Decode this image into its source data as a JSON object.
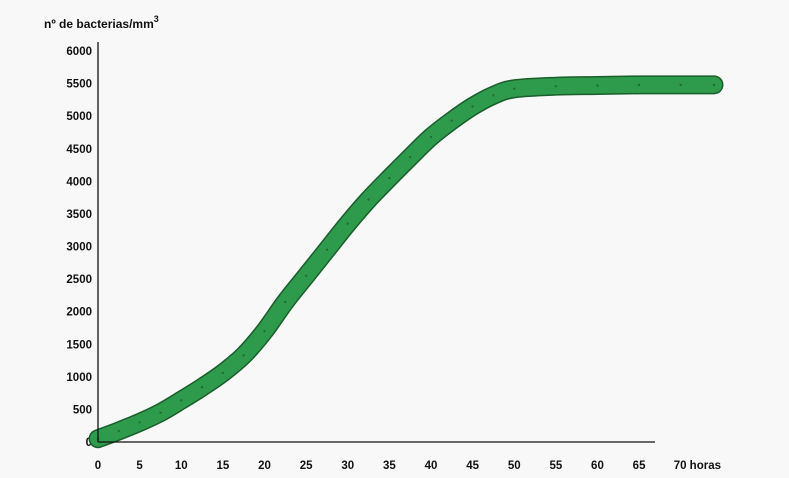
{
  "chart_data": {
    "type": "line",
    "title": "",
    "ylabel": "nº de bacterias/mm",
    "ylabel_superscript": "3",
    "xlabel": "",
    "x_tick_labels": [
      "0",
      "5",
      "10",
      "15",
      "20",
      "25",
      "30",
      "35",
      "40",
      "45",
      "50",
      "55",
      "60",
      "65",
      "70 horas"
    ],
    "x_ticks": [
      0,
      5,
      10,
      15,
      20,
      25,
      30,
      35,
      40,
      45,
      50,
      55,
      60,
      65,
      70
    ],
    "y_ticks": [
      0,
      500,
      1000,
      1500,
      2000,
      2500,
      3000,
      3500,
      4000,
      4500,
      5000,
      5500,
      6000
    ],
    "xlim": [
      0,
      74
    ],
    "ylim": [
      0,
      6000
    ],
    "grid": false,
    "legend": "none",
    "series": [
      {
        "color": "#2e9a4c",
        "outline_color": "#1a5e2c",
        "x": [
          0,
          2.5,
          5,
          7.5,
          10,
          12.5,
          15,
          17.5,
          20,
          22.5,
          25,
          27.5,
          30,
          32.5,
          35,
          37.5,
          40,
          42.5,
          45,
          47.5,
          50,
          55,
          60,
          65,
          70,
          74
        ],
        "y": [
          50,
          170,
          300,
          450,
          640,
          840,
          1060,
          1330,
          1700,
          2150,
          2550,
          2950,
          3350,
          3720,
          4050,
          4370,
          4680,
          4930,
          5150,
          5320,
          5420,
          5460,
          5470,
          5480,
          5480,
          5480
        ]
      }
    ]
  }
}
